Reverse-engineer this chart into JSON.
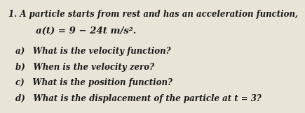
{
  "background_color": "#e8e4d8",
  "number": "1.",
  "line1": "A particle starts from rest and has an acceleration function,",
  "line2": "a(t) = 9 − 24t m/s².",
  "items": [
    "a) What is the velocity function?",
    "b) When is the velocity zero?",
    "c) What is the position function?",
    "d) What is the displacement of the particle at t = 3?"
  ],
  "text_color": "#1a1a1a",
  "font_size_main": 8.5,
  "font_size_eq": 9.5,
  "font_size_items": 8.5
}
